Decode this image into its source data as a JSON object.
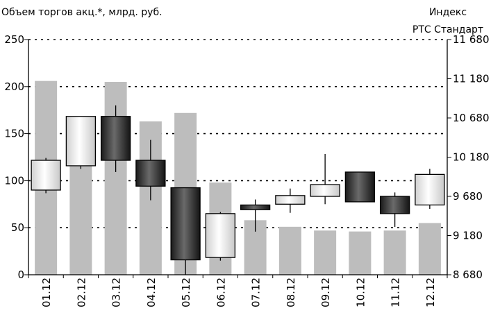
{
  "chart_data": {
    "type": "bar+candlestick",
    "left_axis_label": "Объем торгов акц.*, млрд. руб.",
    "right_axis_label_line1": "Индекс",
    "right_axis_label_line2": "РТС Стандарт",
    "categories": [
      "01.12",
      "02.12",
      "03.12",
      "04.12",
      "05.12",
      "06.12",
      "07.12",
      "08.12",
      "09.12",
      "10.12",
      "11.12",
      "12.12"
    ],
    "volume": [
      206,
      155,
      205,
      163,
      172,
      98,
      58,
      51,
      47,
      46,
      47,
      55
    ],
    "ylim_left": [
      0,
      250
    ],
    "yticks_left": [
      "0",
      "50",
      "100",
      "150",
      "200",
      "250"
    ],
    "ylim_right": [
      8680,
      11680
    ],
    "yticks_right": [
      "8 680",
      "9 180",
      "9 680",
      "10 180",
      "10 680",
      "11 180",
      "11 680"
    ],
    "candles": [
      {
        "open": 9760,
        "close": 10140,
        "high": 10170,
        "low": 9720
      },
      {
        "open": 10070,
        "close": 10700,
        "high": 10700,
        "low": 10030
      },
      {
        "open": 10700,
        "close": 10140,
        "high": 10840,
        "low": 9990
      },
      {
        "open": 10140,
        "close": 9810,
        "high": 10400,
        "low": 9630
      },
      {
        "open": 9790,
        "close": 8870,
        "high": 9790,
        "low": 8680
      },
      {
        "open": 8900,
        "close": 9460,
        "high": 9480,
        "low": 8860
      },
      {
        "open": 9570,
        "close": 9510,
        "high": 9640,
        "low": 9230
      },
      {
        "open": 9580,
        "close": 9690,
        "high": 9780,
        "low": 9470
      },
      {
        "open": 9680,
        "close": 9830,
        "high": 10220,
        "low": 9580
      },
      {
        "open": 9990,
        "close": 9610,
        "high": 9990,
        "low": 9610
      },
      {
        "open": 9680,
        "close": 9460,
        "high": 9730,
        "low": 9290
      },
      {
        "open": 9570,
        "close": 9960,
        "high": 10030,
        "low": 9520
      }
    ],
    "colors": {
      "bars": "#bdbdbd",
      "bullish": "#ffffff",
      "bearish": "#1c1c1c"
    },
    "grid": "dotted horizontal"
  }
}
